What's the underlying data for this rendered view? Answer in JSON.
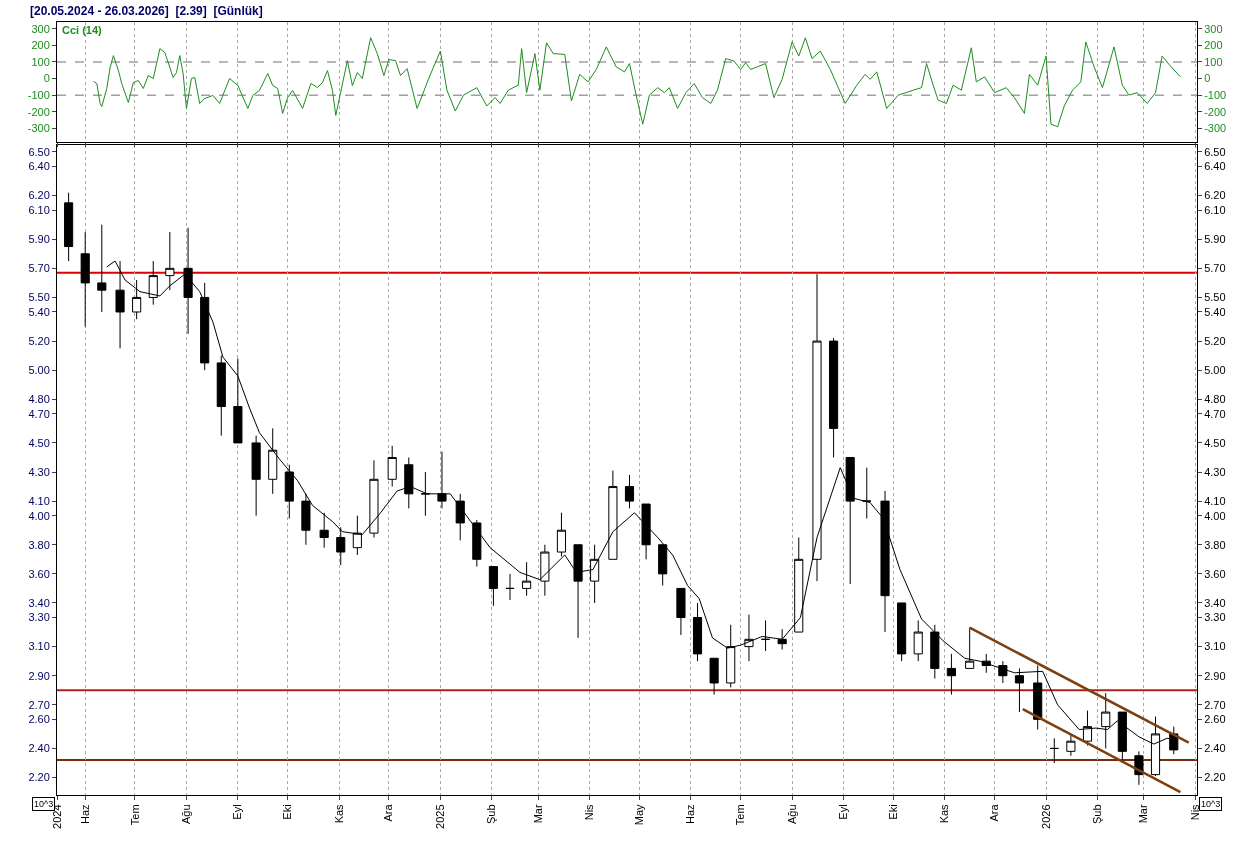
{
  "chart_data": [
    {
      "type": "line",
      "title": "[20.05.2024 - 26.03.2026]  [2.39]  [Günlük]",
      "grid": "x",
      "tick_labels": "y",
      "marker": "none",
      "xlim": [
        "2024-05-15",
        "2026-04-02"
      ],
      "xticks": [
        {
          "value": "2024-05-15",
          "label": null
        },
        {
          "value": "2024-06-01",
          "label": null
        },
        {
          "value": "2024-07-01",
          "label": null
        },
        {
          "value": "2024-08-01",
          "label": null
        },
        {
          "value": "2024-09-01",
          "label": null
        },
        {
          "value": "2024-10-01",
          "label": null
        },
        {
          "value": "2024-11-01",
          "label": null
        },
        {
          "value": "2024-12-01",
          "label": null
        },
        {
          "value": "2025-01-01",
          "label": null
        },
        {
          "value": "2025-02-01",
          "label": null
        },
        {
          "value": "2025-03-01",
          "label": null
        },
        {
          "value": "2025-04-01",
          "label": null
        },
        {
          "value": "2025-05-01",
          "label": null
        },
        {
          "value": "2025-06-01",
          "label": null
        },
        {
          "value": "2025-07-01",
          "label": null
        },
        {
          "value": "2025-08-01",
          "label": null
        },
        {
          "value": "2025-09-01",
          "label": null
        },
        {
          "value": "2025-10-01",
          "label": null
        },
        {
          "value": "2025-11-01",
          "label": null
        },
        {
          "value": "2025-12-01",
          "label": null
        },
        {
          "value": "2026-01-01",
          "label": null
        },
        {
          "value": "2026-02-01",
          "label": null
        },
        {
          "value": "2026-03-01",
          "label": null
        },
        {
          "value": "2026-04-01",
          "label": null
        }
      ],
      "ylim": [
        -380,
        340
      ],
      "yticks": [
        -300,
        -200,
        -100,
        0,
        100,
        200,
        300
      ],
      "y2lim": [
        -380,
        340
      ],
      "y2ticks": [
        -300,
        -200,
        -100,
        0,
        100,
        200,
        300
      ],
      "ref_lines": [
        {
          "axis": "y",
          "value": 100,
          "color": "#a0a0a0",
          "line_style": "dashed"
        },
        {
          "axis": "y",
          "value": -100,
          "color": "#a0a0a0",
          "line_style": "dashed"
        }
      ],
      "x": [
        "2024-06-06",
        "2024-06-08",
        "2024-06-10",
        "2024-06-11",
        "2024-06-14",
        "2024-06-16",
        "2024-06-18",
        "2024-06-21",
        "2024-06-23",
        "2024-06-27",
        "2024-06-30",
        "2024-07-03",
        "2024-07-06",
        "2024-07-09",
        "2024-07-12",
        "2024-07-16",
        "2024-07-19",
        "2024-07-24",
        "2024-07-26",
        "2024-07-28",
        "2024-07-30",
        "2024-08-01",
        "2024-08-04",
        "2024-08-06",
        "2024-08-09",
        "2024-08-12",
        "2024-08-17",
        "2024-08-21",
        "2024-08-27",
        "2024-09-01",
        "2024-09-07",
        "2024-09-10",
        "2024-09-14",
        "2024-09-19",
        "2024-09-22",
        "2024-09-25",
        "2024-09-28",
        "2024-10-01",
        "2024-10-04",
        "2024-10-10",
        "2024-10-15",
        "2024-10-19",
        "2024-10-22",
        "2024-10-25",
        "2024-10-28",
        "2024-10-30",
        "2024-11-06",
        "2024-11-09",
        "2024-11-12",
        "2024-11-15",
        "2024-11-20",
        "2024-11-24",
        "2024-11-28",
        "2024-12-01",
        "2024-12-05",
        "2024-12-08",
        "2024-12-12",
        "2024-12-18",
        "2024-12-20",
        "2024-12-25",
        "2025-01-01",
        "2025-01-05",
        "2025-01-10",
        "2025-01-15",
        "2025-01-23",
        "2025-01-29",
        "2025-02-03",
        "2025-02-06",
        "2025-02-11",
        "2025-02-17",
        "2025-02-19",
        "2025-02-22",
        "2025-02-27",
        "2025-03-02",
        "2025-03-06",
        "2025-03-10",
        "2025-03-17",
        "2025-03-21",
        "2025-03-26",
        "2025-03-31",
        "2025-04-05",
        "2025-04-11",
        "2025-04-17",
        "2025-04-22",
        "2025-04-25",
        "2025-04-29",
        "2025-05-03",
        "2025-05-07",
        "2025-05-12",
        "2025-05-16",
        "2025-05-19",
        "2025-05-24",
        "2025-05-29",
        "2025-06-03",
        "2025-06-08",
        "2025-06-13",
        "2025-06-17",
        "2025-06-22",
        "2025-06-27",
        "2025-07-01",
        "2025-07-04",
        "2025-07-07",
        "2025-07-11",
        "2025-07-16",
        "2025-07-21",
        "2025-07-26",
        "2025-08-01",
        "2025-08-05",
        "2025-08-09",
        "2025-08-13",
        "2025-08-18",
        "2025-08-24",
        "2025-09-02",
        "2025-09-09",
        "2025-09-14",
        "2025-09-17",
        "2025-09-21",
        "2025-09-27",
        "2025-10-04",
        "2025-10-13",
        "2025-10-18",
        "2025-10-21",
        "2025-10-25",
        "2025-10-28",
        "2025-11-02",
        "2025-11-06",
        "2025-11-11",
        "2025-11-17",
        "2025-11-20",
        "2025-11-25",
        "2025-12-01",
        "2025-12-08",
        "2025-12-13",
        "2025-12-19",
        "2025-12-22",
        "2025-12-27",
        "2026-01-01",
        "2026-01-04",
        "2026-01-08",
        "2026-01-12",
        "2026-01-17",
        "2026-01-22",
        "2026-01-25",
        "2026-01-30",
        "2026-02-04",
        "2026-02-11",
        "2026-02-16",
        "2026-02-20",
        "2026-02-25",
        "2026-03-03",
        "2026-03-08",
        "2026-03-12",
        "2026-03-17",
        "2026-03-23"
      ],
      "series": [
        {
          "name": "Cci (14)",
          "color": "#1e8c1e",
          "values": [
            -18,
            -30,
            -150,
            -168,
            -60,
            66,
            138,
            48,
            -30,
            -144,
            -24,
            -12,
            -60,
            18,
            0,
            180,
            156,
            6,
            36,
            138,
            30,
            -180,
            0,
            6,
            -150,
            -120,
            -102,
            -150,
            0,
            -42,
            -180,
            -102,
            -72,
            30,
            -42,
            -60,
            -210,
            -114,
            -72,
            -180,
            -30,
            -54,
            -24,
            48,
            -72,
            -222,
            108,
            -42,
            36,
            0,
            246,
            150,
            18,
            114,
            108,
            18,
            60,
            -180,
            -130,
            0,
            165,
            -70,
            -195,
            -100,
            -55,
            -165,
            -115,
            -150,
            -70,
            -40,
            180,
            -85,
            150,
            -70,
            215,
            150,
            145,
            -135,
            25,
            -20,
            55,
            190,
            70,
            40,
            90,
            -100,
            -275,
            -100,
            -55,
            -85,
            -55,
            -180,
            -85,
            -30,
            -115,
            -150,
            -70,
            120,
            105,
            55,
            95,
            55,
            70,
            90,
            -115,
            -5,
            220,
            135,
            245,
            120,
            165,
            55,
            -150,
            -40,
            25,
            -5,
            40,
            -180,
            -100,
            -70,
            -55,
            90,
            -40,
            -130,
            -150,
            -40,
            -70,
            185,
            -20,
            10,
            -85,
            -55,
            -115,
            -210,
            25,
            -40,
            135,
            -275,
            -290,
            -165,
            -70,
            -20,
            220,
            70,
            -55,
            190,
            -40,
            -100,
            -85,
            -150,
            -85,
            135,
            75,
            10
          ]
        }
      ]
    },
    {
      "type": "candlestick",
      "grid": "x",
      "marker": "none",
      "xlim": [
        "2024-05-15",
        "2026-04-02"
      ],
      "xticks": [
        {
          "value": "2024-05-15",
          "label": "2024"
        },
        {
          "value": "2024-06-01",
          "label": "Haz"
        },
        {
          "value": "2024-07-01",
          "label": "Tem"
        },
        {
          "value": "2024-08-01",
          "label": "Ağu"
        },
        {
          "value": "2024-09-01",
          "label": "Eyl"
        },
        {
          "value": "2024-10-01",
          "label": "Eki"
        },
        {
          "value": "2024-11-01",
          "label": "Kas"
        },
        {
          "value": "2024-12-01",
          "label": "Ara"
        },
        {
          "value": "2025-01-01",
          "label": "2025"
        },
        {
          "value": "2025-02-01",
          "label": "Şub"
        },
        {
          "value": "2025-03-01",
          "label": "Mar"
        },
        {
          "value": "2025-04-01",
          "label": "Nis"
        },
        {
          "value": "2025-05-01",
          "label": "May"
        },
        {
          "value": "2025-06-01",
          "label": "Haz"
        },
        {
          "value": "2025-07-01",
          "label": "Tem"
        },
        {
          "value": "2025-08-01",
          "label": "Ağu"
        },
        {
          "value": "2025-09-01",
          "label": "Eyl"
        },
        {
          "value": "2025-10-01",
          "label": "Eki"
        },
        {
          "value": "2025-11-01",
          "label": "Kas"
        },
        {
          "value": "2025-12-01",
          "label": "Ara"
        },
        {
          "value": "2026-01-01",
          "label": "2026"
        },
        {
          "value": "2026-02-01",
          "label": "Şub"
        },
        {
          "value": "2026-03-01",
          "label": "Mar"
        },
        {
          "value": "2026-04-01",
          "label": "Nis"
        }
      ],
      "ylim": [
        2.08,
        6.55
      ],
      "yticks": [
        {
          "value": 2.2,
          "label": "2.20"
        },
        {
          "value": 2.4,
          "label": "2.40"
        },
        {
          "value": 2.6,
          "label": "2.60"
        },
        {
          "value": 2.7,
          "label": "2.70"
        },
        {
          "value": 2.9,
          "label": "2.90"
        },
        {
          "value": 3.1,
          "label": "3.10"
        },
        {
          "value": 3.3,
          "label": "3.30"
        },
        {
          "value": 3.4,
          "label": "3.40"
        },
        {
          "value": 3.6,
          "label": "3.60"
        },
        {
          "value": 3.8,
          "label": "3.80"
        },
        {
          "value": 4.0,
          "label": "4.00"
        },
        {
          "value": 4.1,
          "label": "4.10"
        },
        {
          "value": 4.3,
          "label": "4.30"
        },
        {
          "value": 4.5,
          "label": "4.50"
        },
        {
          "value": 4.7,
          "label": "4.70"
        },
        {
          "value": 4.8,
          "label": "4.80"
        },
        {
          "value": 5.0,
          "label": "5.00"
        },
        {
          "value": 5.2,
          "label": "5.20"
        },
        {
          "value": 5.4,
          "label": "5.40"
        },
        {
          "value": 5.5,
          "label": "5.50"
        },
        {
          "value": 5.7,
          "label": "5.70"
        },
        {
          "value": 5.9,
          "label": "5.90"
        },
        {
          "value": 6.1,
          "label": "6.10"
        },
        {
          "value": 6.2,
          "label": "6.20"
        },
        {
          "value": 6.4,
          "label": "6.40"
        },
        {
          "value": 6.5,
          "label": "6.50"
        }
      ],
      "y2lim": [
        2.08,
        6.55
      ],
      "y2ticks": [
        {
          "value": 2.2,
          "label": "2.20"
        },
        {
          "value": 2.4,
          "label": "2.40"
        },
        {
          "value": 2.6,
          "label": "2.60"
        },
        {
          "value": 2.7,
          "label": "2.70"
        },
        {
          "value": 2.9,
          "label": "2.90"
        },
        {
          "value": 3.1,
          "label": "3.10"
        },
        {
          "value": 3.3,
          "label": "3.30"
        },
        {
          "value": 3.4,
          "label": "3.40"
        },
        {
          "value": 3.6,
          "label": "3.60"
        },
        {
          "value": 3.8,
          "label": "3.80"
        },
        {
          "value": 4.0,
          "label": "4.00"
        },
        {
          "value": 4.1,
          "label": "4.10"
        },
        {
          "value": 4.3,
          "label": "4.30"
        },
        {
          "value": 4.5,
          "label": "4.50"
        },
        {
          "value": 4.7,
          "label": "4.70"
        },
        {
          "value": 4.8,
          "label": "4.80"
        },
        {
          "value": 5.0,
          "label": "5.00"
        },
        {
          "value": 5.2,
          "label": "5.20"
        },
        {
          "value": 5.4,
          "label": "5.40"
        },
        {
          "value": 5.5,
          "label": "5.50"
        },
        {
          "value": 5.7,
          "label": "5.70"
        },
        {
          "value": 5.9,
          "label": "5.90"
        },
        {
          "value": 6.1,
          "label": "6.10"
        },
        {
          "value": 6.2,
          "label": "6.20"
        },
        {
          "value": 6.4,
          "label": "6.40"
        },
        {
          "value": 6.5,
          "label": "6.50"
        }
      ],
      "ref_lines": [
        {
          "axis": "y",
          "value": 5.67,
          "color": "#e00000"
        },
        {
          "axis": "y",
          "value": 2.8,
          "color": "#b0201a"
        },
        {
          "axis": "y",
          "value": 2.32,
          "color": "#7a2a10"
        }
      ],
      "annotations": [
        "10^3",
        "10^3"
      ],
      "x": [
        "2024-05-22",
        "2024-06-01",
        "2024-06-11",
        "2024-06-22",
        "2024-07-02",
        "2024-07-12",
        "2024-07-22",
        "2024-08-02",
        "2024-08-12",
        "2024-08-22",
        "2024-09-01",
        "2024-09-12",
        "2024-09-22",
        "2024-10-02",
        "2024-10-12",
        "2024-10-23",
        "2024-11-02",
        "2024-11-12",
        "2024-11-22",
        "2024-12-03",
        "2024-12-13",
        "2024-12-23",
        "2025-01-02",
        "2025-01-13",
        "2025-01-23",
        "2025-02-02",
        "2025-02-12",
        "2025-02-22",
        "2025-03-05",
        "2025-03-15",
        "2025-03-25",
        "2025-04-04",
        "2025-04-15",
        "2025-04-25",
        "2025-05-05",
        "2025-05-15",
        "2025-05-26",
        "2025-06-05",
        "2025-06-15",
        "2025-06-25",
        "2025-07-06",
        "2025-07-16",
        "2025-07-26",
        "2025-08-05",
        "2025-08-16",
        "2025-08-26",
        "2025-09-05",
        "2025-09-15",
        "2025-09-26",
        "2025-10-06",
        "2025-10-16",
        "2025-10-26",
        "2025-11-05",
        "2025-11-16",
        "2025-11-26",
        "2025-12-06",
        "2025-12-16",
        "2025-12-27",
        "2026-01-06",
        "2026-01-16",
        "2026-01-26",
        "2026-02-06",
        "2026-02-16",
        "2026-02-26",
        "2026-03-08",
        "2026-03-19"
      ],
      "ohlc": [
        [
          6.15,
          6.22,
          5.75,
          5.85
        ],
        [
          5.8,
          5.95,
          5.3,
          5.6
        ],
        [
          5.6,
          6.0,
          5.4,
          5.55
        ],
        [
          5.55,
          5.75,
          5.15,
          5.4
        ],
        [
          5.4,
          5.62,
          5.35,
          5.5
        ],
        [
          5.5,
          5.75,
          5.45,
          5.65
        ],
        [
          5.65,
          5.95,
          5.55,
          5.7
        ],
        [
          5.7,
          5.98,
          5.25,
          5.5
        ],
        [
          5.5,
          5.6,
          5.0,
          5.05
        ],
        [
          5.05,
          5.1,
          4.55,
          4.75
        ],
        [
          4.75,
          5.08,
          4.5,
          4.5
        ],
        [
          4.5,
          4.55,
          4.0,
          4.25
        ],
        [
          4.25,
          4.6,
          4.15,
          4.45
        ],
        [
          4.3,
          4.35,
          3.98,
          4.1
        ],
        [
          4.1,
          4.15,
          3.8,
          3.9
        ],
        [
          3.9,
          4.02,
          3.78,
          3.85
        ],
        [
          3.85,
          3.92,
          3.66,
          3.75
        ],
        [
          3.78,
          4.0,
          3.73,
          3.88
        ],
        [
          3.88,
          4.38,
          3.85,
          4.25
        ],
        [
          4.25,
          4.48,
          4.2,
          4.4
        ],
        [
          4.35,
          4.4,
          4.05,
          4.15
        ],
        [
          4.15,
          4.3,
          4.0,
          4.15
        ],
        [
          4.15,
          4.44,
          4.05,
          4.1
        ],
        [
          4.1,
          4.15,
          3.83,
          3.95
        ],
        [
          3.95,
          3.97,
          3.65,
          3.7
        ],
        [
          3.65,
          3.65,
          3.38,
          3.5
        ],
        [
          3.5,
          3.6,
          3.42,
          3.5
        ],
        [
          3.5,
          3.68,
          3.45,
          3.55
        ],
        [
          3.55,
          3.8,
          3.45,
          3.75
        ],
        [
          3.75,
          4.02,
          3.72,
          3.9
        ],
        [
          3.8,
          3.8,
          3.16,
          3.55
        ],
        [
          3.55,
          3.8,
          3.4,
          3.7
        ],
        [
          3.7,
          4.31,
          3.7,
          4.2
        ],
        [
          4.2,
          4.28,
          4.05,
          4.1
        ],
        [
          4.08,
          4.08,
          3.7,
          3.8
        ],
        [
          3.8,
          3.8,
          3.52,
          3.6
        ],
        [
          3.5,
          3.5,
          3.18,
          3.3
        ],
        [
          3.3,
          3.4,
          3.0,
          3.05
        ],
        [
          3.02,
          3.02,
          2.77,
          2.85
        ],
        [
          2.85,
          3.25,
          2.82,
          3.1
        ],
        [
          3.1,
          3.32,
          3.0,
          3.15
        ],
        [
          3.15,
          3.28,
          3.07,
          3.15
        ],
        [
          3.15,
          3.22,
          3.08,
          3.12
        ],
        [
          3.2,
          3.85,
          3.2,
          3.7
        ],
        [
          3.7,
          5.66,
          3.55,
          5.2
        ],
        [
          5.2,
          5.22,
          4.4,
          4.6
        ],
        [
          4.4,
          4.4,
          3.53,
          4.1
        ],
        [
          4.1,
          4.33,
          3.98,
          4.1
        ],
        [
          4.1,
          4.17,
          3.2,
          3.45
        ],
        [
          3.4,
          3.4,
          3.0,
          3.05
        ],
        [
          3.05,
          3.28,
          3.0,
          3.2
        ],
        [
          3.2,
          3.25,
          2.88,
          2.95
        ],
        [
          2.95,
          3.05,
          2.77,
          2.9
        ],
        [
          2.95,
          3.23,
          2.95,
          3.0
        ],
        [
          3.0,
          3.05,
          2.92,
          2.97
        ],
        [
          2.97,
          3.0,
          2.85,
          2.9
        ],
        [
          2.9,
          2.95,
          2.65,
          2.85
        ],
        [
          2.85,
          2.97,
          2.53,
          2.6
        ],
        [
          2.4,
          2.47,
          2.3,
          2.4
        ],
        [
          2.38,
          2.5,
          2.35,
          2.45
        ],
        [
          2.45,
          2.66,
          2.42,
          2.55
        ],
        [
          2.55,
          2.78,
          2.4,
          2.65
        ],
        [
          2.65,
          2.65,
          2.3,
          2.38
        ],
        [
          2.35,
          2.38,
          2.15,
          2.22
        ],
        [
          2.22,
          2.62,
          2.21,
          2.5
        ],
        [
          2.5,
          2.55,
          2.36,
          2.39
        ]
      ],
      "series": [
        {
          "type": "line",
          "color": "#000000",
          "x": [
            "2024-06-14",
            "2024-06-19",
            "2024-06-25",
            "2024-07-04",
            "2024-07-16",
            "2024-07-22",
            "2024-07-31",
            "2024-08-09",
            "2024-08-17",
            "2024-08-23",
            "2024-09-01",
            "2024-09-08",
            "2024-09-14",
            "2024-09-26",
            "2024-10-07",
            "2024-10-16",
            "2024-10-28",
            "2024-11-03",
            "2024-11-15",
            "2024-11-26",
            "2024-12-06",
            "2024-12-14",
            "2024-12-24",
            "2025-01-07",
            "2025-01-31",
            "2025-02-18",
            "2025-03-02",
            "2025-03-17",
            "2025-03-24",
            "2025-04-03",
            "2025-04-15",
            "2025-04-28",
            "2025-05-12",
            "2025-05-21",
            "2025-05-30",
            "2025-06-06",
            "2025-06-14",
            "2025-06-23",
            "2025-07-01",
            "2025-07-14",
            "2025-07-26",
            "2025-08-06",
            "2025-08-16",
            "2025-08-30",
            "2025-09-07",
            "2025-09-17",
            "2025-09-25",
            "2025-10-05",
            "2025-10-18",
            "2025-10-31",
            "2025-11-13",
            "2025-11-22",
            "2025-12-13",
            "2025-12-30",
            "2026-01-08",
            "2026-01-21",
            "2026-01-31",
            "2026-02-07",
            "2026-02-13",
            "2026-02-26",
            "2026-03-07",
            "2026-03-15",
            "2026-03-20"
          ],
          "values": [
            5.71,
            5.75,
            5.62,
            5.54,
            5.51,
            5.58,
            5.66,
            5.54,
            5.33,
            5.09,
            4.96,
            4.74,
            4.57,
            4.39,
            4.24,
            4.07,
            3.96,
            3.89,
            3.87,
            4.02,
            4.17,
            4.2,
            4.15,
            4.15,
            3.78,
            3.61,
            3.56,
            3.73,
            3.61,
            3.63,
            3.89,
            4.02,
            3.85,
            3.73,
            3.52,
            3.43,
            3.16,
            3.09,
            3.11,
            3.17,
            3.15,
            3.3,
            3.85,
            4.33,
            4.12,
            4.09,
            3.98,
            3.63,
            3.29,
            3.14,
            3.02,
            3.0,
            2.92,
            2.93,
            2.7,
            2.53,
            2.54,
            2.53,
            2.59,
            2.48,
            2.43,
            2.47,
            2.46
          ]
        },
        {
          "type": "line",
          "color": "#7b3f10",
          "x": [
            "2025-11-16",
            "2026-03-28"
          ],
          "values": [
            3.23,
            2.44
          ]
        },
        {
          "type": "line",
          "color": "#7b3f10",
          "x": [
            "2025-12-18",
            "2026-03-23"
          ],
          "values": [
            2.67,
            2.1
          ]
        }
      ]
    }
  ]
}
